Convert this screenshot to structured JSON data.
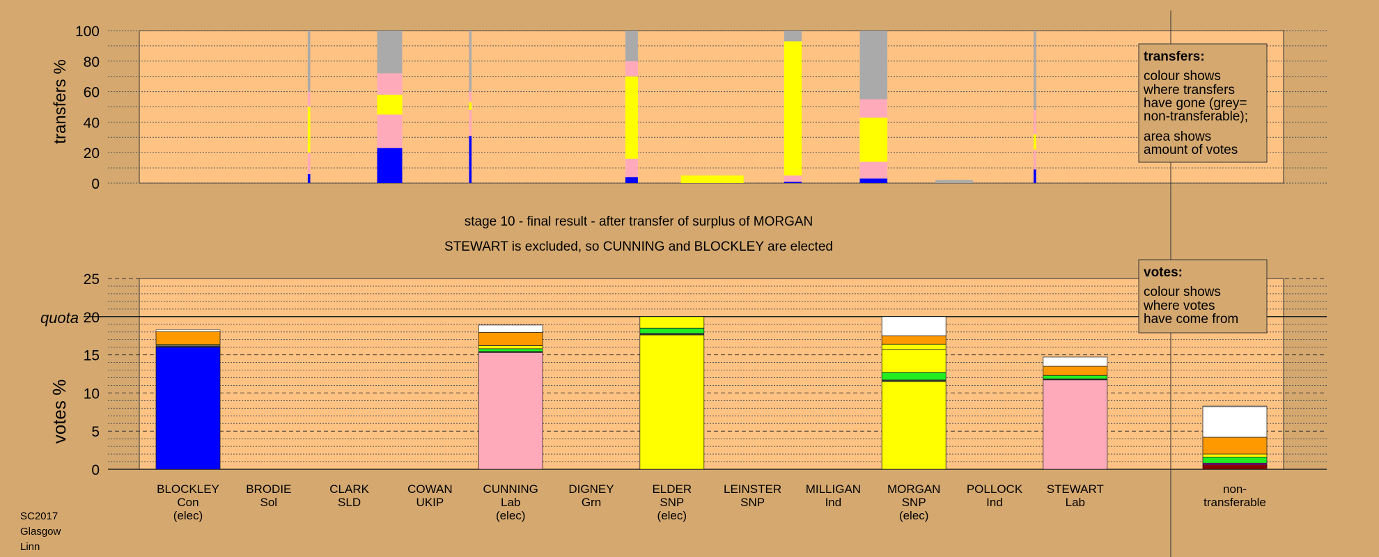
{
  "colors": {
    "page_bg": "#d4a86f",
    "plot_bg": "#fec283",
    "Con": "#0000ff",
    "Lab": "#ffaabb",
    "SNP": "#ffff00",
    "Grn": "#22ee22",
    "SLD": "#ff9900",
    "UKIP": "#9900aa",
    "Ind": "#333333",
    "Sol": "#880000",
    "non_transferable": "#ffffff",
    "nt_grey": "#aaaaaa",
    "dark_line": "#333333"
  },
  "labels": {
    "heading_line1": "stage 10 - final result - after transfer of surplus of MORGAN",
    "heading_line2": "STEWART is excluded, so CUNNING and BLOCKLEY are elected",
    "top_ylabel": "transfers %",
    "bottom_ylabel": "votes %",
    "quota_label": "quota",
    "footer": [
      "SC2017",
      "Glasgow",
      "Linn"
    ]
  },
  "legend_transfers": {
    "title": "transfers:",
    "para1": [
      "colour shows",
      "where transfers",
      "have gone (grey=",
      "non-transferable);"
    ],
    "para2": [
      "area shows",
      "amount of votes"
    ]
  },
  "legend_votes": {
    "title": "votes:",
    "para1": [
      "colour shows",
      "where votes",
      "have come from"
    ]
  },
  "chart_data": [
    {
      "type": "bar",
      "name": "transfers",
      "ylabel": "transfers %",
      "ylim": [
        0,
        100
      ],
      "yticks": [
        0,
        20,
        40,
        60,
        80,
        100
      ],
      "grid": true,
      "series_note": "each column is a stacked bar of transfer destinations in percent; the column width shows the amount of votes transferred",
      "columns": [
        {
          "candidate": "BRODIE",
          "width": 0.1,
          "segments": [
            {
              "party": "Con",
              "value": 6
            },
            {
              "party": "Lab",
              "value": 14
            },
            {
              "party": "SNP",
              "value": 30
            },
            {
              "party": "Lab",
              "value": 10
            },
            {
              "party": "nt",
              "value": 40
            }
          ]
        },
        {
          "candidate": "CLARK",
          "width": 1.0,
          "segments": [
            {
              "party": "Con",
              "value": 23
            },
            {
              "party": "Lab",
              "value": 22
            },
            {
              "party": "SNP",
              "value": 13
            },
            {
              "party": "Lab",
              "value": 14
            },
            {
              "party": "nt",
              "value": 28
            }
          ]
        },
        {
          "candidate": "COWAN",
          "width": 0.1,
          "segments": [
            {
              "party": "Con",
              "value": 31
            },
            {
              "party": "Lab",
              "value": 17
            },
            {
              "party": "SNP",
              "value": 5
            },
            {
              "party": "Lab",
              "value": 7
            },
            {
              "party": "nt",
              "value": 40
            }
          ]
        },
        {
          "candidate": "DIGNEY",
          "width": 0.5,
          "segments": [
            {
              "party": "Con",
              "value": 4
            },
            {
              "party": "Lab",
              "value": 12
            },
            {
              "party": "SNP",
              "value": 54
            },
            {
              "party": "Lab",
              "value": 10
            },
            {
              "party": "nt",
              "value": 20
            }
          ]
        },
        {
          "candidate": "ELDER",
          "width": 2.5,
          "segments": [
            {
              "party": "SNP",
              "value": 5
            }
          ]
        },
        {
          "candidate": "LEINSTER",
          "width": 0.7,
          "segments": [
            {
              "party": "Con",
              "value": 1
            },
            {
              "party": "Lab",
              "value": 4
            },
            {
              "party": "SNP",
              "value": 88
            },
            {
              "party": "nt",
              "value": 7
            }
          ]
        },
        {
          "candidate": "MILLIGAN",
          "width": 1.1,
          "segments": [
            {
              "party": "Con",
              "value": 3
            },
            {
              "party": "Lab",
              "value": 11
            },
            {
              "party": "SNP",
              "value": 29
            },
            {
              "party": "Lab",
              "value": 12
            },
            {
              "party": "nt",
              "value": 45
            }
          ]
        },
        {
          "candidate": "MORGAN",
          "width": 1.5,
          "segments": [
            {
              "party": "nt",
              "value": 2
            }
          ]
        },
        {
          "candidate": "POLLOCK",
          "width": 0.1,
          "segments": [
            {
              "party": "Con",
              "value": 9
            },
            {
              "party": "Lab",
              "value": 13
            },
            {
              "party": "SNP",
              "value": 10
            },
            {
              "party": "Lab",
              "value": 16
            },
            {
              "party": "nt",
              "value": 52
            }
          ]
        }
      ]
    },
    {
      "type": "bar",
      "name": "votes",
      "ylabel": "votes %",
      "ylim": [
        0,
        25
      ],
      "yticks": [
        0,
        5,
        10,
        15,
        20,
        25
      ],
      "quota": 20,
      "grid": true,
      "stacked": true,
      "candidates": [
        {
          "name": "BLOCKLEY",
          "party": "Con",
          "status": "(elec)",
          "segments": [
            {
              "party": "Con",
              "value": 16.0
            },
            {
              "party": "Ind",
              "value": 0.15
            },
            {
              "party": "Lab",
              "value": 0.1
            },
            {
              "party": "Grn",
              "value": 0.1
            },
            {
              "party": "SLD",
              "value": 1.7
            },
            {
              "party": "nt",
              "value": 0.25
            }
          ]
        },
        {
          "name": "BRODIE",
          "party": "Sol",
          "status": "",
          "segments": []
        },
        {
          "name": "CLARK",
          "party": "SLD",
          "status": "",
          "segments": []
        },
        {
          "name": "COWAN",
          "party": "UKIP",
          "status": "",
          "segments": []
        },
        {
          "name": "CUNNING",
          "party": "Lab",
          "status": "(elec)",
          "segments": [
            {
              "party": "Lab",
              "value": 15.3
            },
            {
              "party": "Ind",
              "value": 0.15
            },
            {
              "party": "Grn",
              "value": 0.35
            },
            {
              "party": "SNP",
              "value": 0.4
            },
            {
              "party": "SLD",
              "value": 1.75
            },
            {
              "party": "nt",
              "value": 0.95
            }
          ]
        },
        {
          "name": "DIGNEY",
          "party": "Grn",
          "status": "",
          "segments": []
        },
        {
          "name": "ELDER",
          "party": "SNP",
          "status": "(elec)",
          "segments": [
            {
              "party": "SNP",
              "value": 17.6
            },
            {
              "party": "Ind",
              "value": 0.2
            },
            {
              "party": "Grn",
              "value": 0.7
            },
            {
              "party": "SNP",
              "value": 1.5
            }
          ]
        },
        {
          "name": "LEINSTER",
          "party": "SNP",
          "status": "",
          "segments": []
        },
        {
          "name": "MILLIGAN",
          "party": "Ind",
          "status": "",
          "segments": []
        },
        {
          "name": "MORGAN",
          "party": "SNP",
          "status": "(elec)",
          "segments": [
            {
              "party": "SNP",
              "value": 11.5
            },
            {
              "party": "Ind",
              "value": 0.2
            },
            {
              "party": "Grn",
              "value": 1.0
            },
            {
              "party": "SNP",
              "value": 3.0
            },
            {
              "party": "SNP",
              "value": 0.7
            },
            {
              "party": "SLD",
              "value": 1.1
            },
            {
              "party": "nt",
              "value": 2.5
            }
          ]
        },
        {
          "name": "POLLOCK",
          "party": "Ind",
          "status": "",
          "segments": []
        },
        {
          "name": "STEWART",
          "party": "Lab",
          "status": "",
          "segments": [
            {
              "party": "Lab",
              "value": 11.7
            },
            {
              "party": "Ind",
              "value": 0.15
            },
            {
              "party": "Grn",
              "value": 0.45
            },
            {
              "party": "SLD",
              "value": 1.2
            },
            {
              "party": "nt",
              "value": 1.2
            }
          ]
        }
      ],
      "non_transferable": {
        "name1": "non-",
        "name2": "transferable",
        "segments": [
          {
            "party": "Sol",
            "value": 0.6
          },
          {
            "party": "UKIP",
            "value": 0.2
          },
          {
            "party": "Grn",
            "value": 0.8
          },
          {
            "party": "SNP",
            "value": 0.4
          },
          {
            "party": "SLD",
            "value": 2.2
          },
          {
            "party": "nt",
            "value": 4.0
          },
          {
            "party": "nt_grey",
            "value": 0.1
          }
        ]
      }
    }
  ]
}
